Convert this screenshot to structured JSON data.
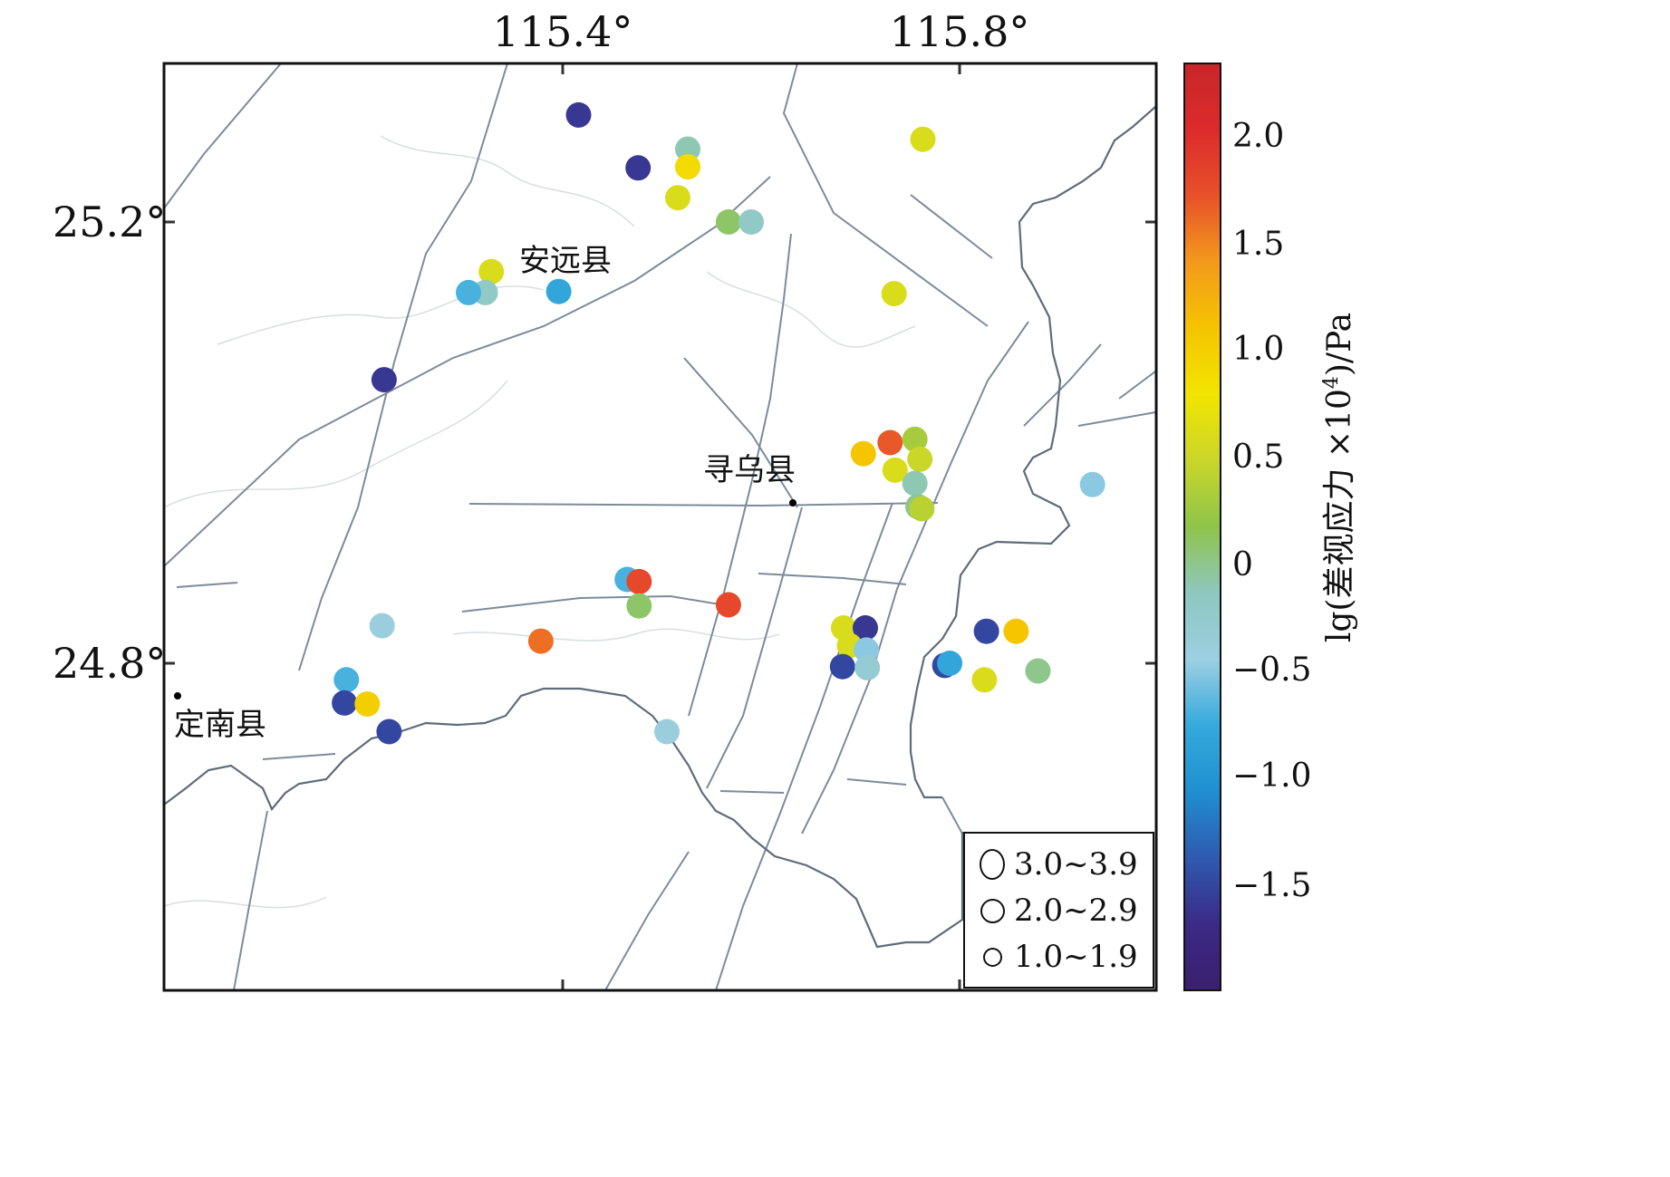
{
  "map": {
    "lon_ticks": [
      "115.4°",
      "115.8°"
    ],
    "lat_ticks": [
      "25.2°",
      "24.8°"
    ],
    "towns": [
      "安远县",
      "寻乌县",
      "定南县"
    ]
  },
  "colorbar": {
    "label": "lg(差视应力×10⁴)/Pa",
    "label_pre": "lg(差视应力 ×10",
    "label_sup": "4",
    "label_post": ")/Pa",
    "ticks": [
      "2.0",
      "1.5",
      "1.0",
      "0.5",
      "0",
      "−0.5",
      "−1.0",
      "−1.5"
    ],
    "range": [
      -2.0,
      2.35
    ],
    "colors": [
      "#3a1f6e",
      "#3b2a86",
      "#2f5ab0",
      "#1f8fd0",
      "#35aadc",
      "#9ccfe2",
      "#8ec7c0",
      "#8ec44a",
      "#c9d62a",
      "#f2e500",
      "#f5c400",
      "#f39a1c",
      "#e8512a",
      "#dc2b2b",
      "#c8262a"
    ]
  },
  "legend": {
    "items": [
      {
        "label": "3.0~3.9"
      },
      {
        "label": "2.0~2.9"
      },
      {
        "label": "1.0~1.9"
      }
    ]
  },
  "events": [
    {
      "lon": 115.416,
      "lat": 25.297,
      "v": -1.6
    },
    {
      "lon": 115.476,
      "lat": 25.249,
      "v": -1.6
    },
    {
      "lon": 115.526,
      "lat": 25.266,
      "v": -0.1
    },
    {
      "lon": 115.526,
      "lat": 25.25,
      "v": 0.9
    },
    {
      "lon": 115.516,
      "lat": 25.222,
      "v": 0.6
    },
    {
      "lon": 115.567,
      "lat": 25.2,
      "v": 0.1
    },
    {
      "lon": 115.59,
      "lat": 25.2,
      "v": -0.2
    },
    {
      "lon": 115.763,
      "lat": 25.275,
      "v": 0.6
    },
    {
      "lon": 115.328,
      "lat": 25.155,
      "v": 0.6
    },
    {
      "lon": 115.322,
      "lat": 25.136,
      "v": -0.2
    },
    {
      "lon": 115.305,
      "lat": 25.136,
      "v": -0.7
    },
    {
      "lon": 115.396,
      "lat": 25.137,
      "v": -0.8
    },
    {
      "lon": 115.734,
      "lat": 25.135,
      "v": 0.6
    },
    {
      "lon": 115.22,
      "lat": 25.057,
      "v": -1.6
    },
    {
      "lon": 115.703,
      "lat": 24.99,
      "v": 1.1
    },
    {
      "lon": 115.73,
      "lat": 25.0,
      "v": 1.7
    },
    {
      "lon": 115.755,
      "lat": 25.003,
      "v": 0.3
    },
    {
      "lon": 115.76,
      "lat": 24.985,
      "v": 0.5
    },
    {
      "lon": 115.735,
      "lat": 24.975,
      "v": 0.6
    },
    {
      "lon": 115.755,
      "lat": 24.963,
      "v": -0.1
    },
    {
      "lon": 115.758,
      "lat": 24.942,
      "v": 0.0
    },
    {
      "lon": 115.762,
      "lat": 24.94,
      "v": 0.4
    },
    {
      "lon": 115.934,
      "lat": 24.962,
      "v": -0.5
    },
    {
      "lon": 115.465,
      "lat": 24.876,
      "v": -0.7
    },
    {
      "lon": 115.477,
      "lat": 24.874,
      "v": 1.8
    },
    {
      "lon": 115.477,
      "lat": 24.852,
      "v": 0.1
    },
    {
      "lon": 115.567,
      "lat": 24.853,
      "v": 1.8
    },
    {
      "lon": 115.218,
      "lat": 24.834,
      "v": -0.4
    },
    {
      "lon": 115.378,
      "lat": 24.82,
      "v": 1.6
    },
    {
      "lon": 115.683,
      "lat": 24.832,
      "v": 0.6
    },
    {
      "lon": 115.705,
      "lat": 24.832,
      "v": -1.6
    },
    {
      "lon": 115.689,
      "lat": 24.816,
      "v": 0.6
    },
    {
      "lon": 115.706,
      "lat": 24.812,
      "v": -0.5
    },
    {
      "lon": 115.682,
      "lat": 24.797,
      "v": -1.5
    },
    {
      "lon": 115.707,
      "lat": 24.796,
      "v": -0.3
    },
    {
      "lon": 115.785,
      "lat": 24.798,
      "v": -1.5
    },
    {
      "lon": 115.79,
      "lat": 24.8,
      "v": -0.8
    },
    {
      "lon": 115.827,
      "lat": 24.829,
      "v": -1.5
    },
    {
      "lon": 115.857,
      "lat": 24.829,
      "v": 1.1
    },
    {
      "lon": 115.825,
      "lat": 24.785,
      "v": 0.6
    },
    {
      "lon": 115.879,
      "lat": 24.793,
      "v": 0.0
    },
    {
      "lon": 115.182,
      "lat": 24.785,
      "v": -0.7
    },
    {
      "lon": 115.18,
      "lat": 24.764,
      "v": -1.5
    },
    {
      "lon": 115.203,
      "lat": 24.763,
      "v": 1.0
    },
    {
      "lon": 115.225,
      "lat": 24.738,
      "v": -1.5
    },
    {
      "lon": 115.505,
      "lat": 24.738,
      "v": -0.4
    }
  ]
}
